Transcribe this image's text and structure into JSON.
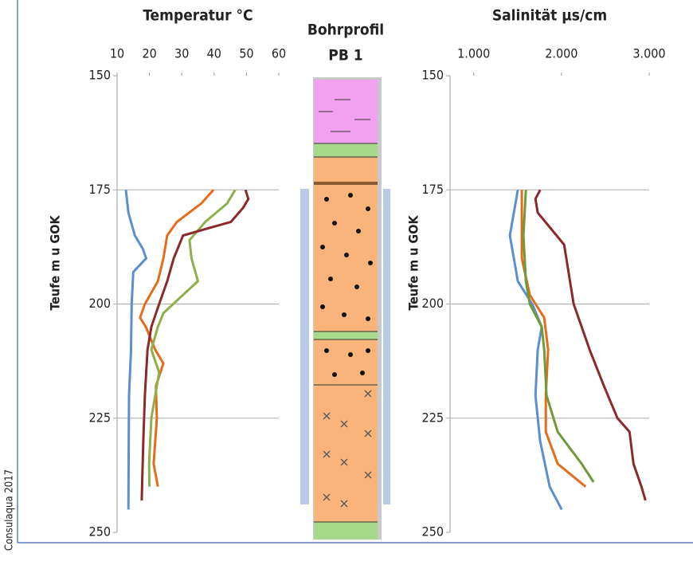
{
  "chart_data": [
    {
      "type": "line",
      "title": "Temperatur °C",
      "y_label": "Teufe m u GOK",
      "xlim": [
        10,
        60
      ],
      "xticks": [
        10,
        20,
        30,
        40,
        50,
        60
      ],
      "ylim": [
        150,
        250
      ],
      "yticks": [
        150,
        175,
        200,
        225,
        250
      ],
      "y_inverted": true,
      "grid": true,
      "series": [
        {
          "color": "#5b8fd0",
          "y": [
            175,
            180,
            185,
            188,
            190,
            193,
            200,
            210,
            220,
            230,
            245
          ],
          "x": [
            12.7,
            13.5,
            15.5,
            18,
            19,
            15,
            14.5,
            14.3,
            13.7,
            13.6,
            13.5
          ]
        },
        {
          "color": "#e46c1a",
          "y": [
            175,
            178,
            182,
            185,
            190,
            195,
            200,
            203,
            205,
            210,
            213,
            218,
            225,
            235,
            240
          ],
          "x": [
            39.8,
            36,
            28.5,
            25.5,
            24.3,
            22.6,
            18.6,
            17.1,
            18.9,
            21.8,
            24.3,
            22,
            22.3,
            21.3,
            22.6
          ]
        },
        {
          "color": "#8db04c",
          "y": [
            175,
            178,
            182,
            186,
            190,
            195,
            198,
            202,
            205,
            210,
            215,
            220,
            225,
            235,
            240
          ],
          "x": [
            46.5,
            44,
            37.3,
            32.4,
            33,
            35,
            30.4,
            24.3,
            22.6,
            20.6,
            23,
            21.8,
            20.6,
            19.9,
            20
          ]
        },
        {
          "color": "#8b2a2a",
          "y": [
            175,
            177,
            179,
            182,
            185,
            190,
            195,
            200,
            205,
            210,
            220,
            230,
            243
          ],
          "x": [
            49.7,
            50.6,
            48.9,
            45.2,
            30.4,
            27.5,
            25.5,
            23,
            20.6,
            19.4,
            18.6,
            18.1,
            17.6
          ]
        }
      ]
    },
    {
      "type": "line",
      "title": "Salinität µs/cm",
      "y_label": "Teufe m u GOK",
      "xlim": [
        730,
        3000
      ],
      "xticks": [
        {
          "value": 1000,
          "label": "1.000"
        },
        {
          "value": 2000,
          "label": "2.000"
        },
        {
          "value": 3000,
          "label": "3.000"
        }
      ],
      "ylim": [
        150,
        250
      ],
      "yticks": [
        150,
        175,
        200,
        225,
        250
      ],
      "y_inverted": true,
      "grid": true,
      "series": [
        {
          "color": "#5b8fd0",
          "y": [
            175,
            185,
            195,
            200,
            205,
            210,
            220,
            230,
            240,
            245
          ],
          "x": [
            1503,
            1412,
            1503,
            1666,
            1775,
            1730,
            1703,
            1757,
            1866,
            2003
          ]
        },
        {
          "color": "#e46c1a",
          "y": [
            175,
            190,
            198,
            203,
            210,
            220,
            228,
            235,
            240
          ],
          "x": [
            1548,
            1548,
            1639,
            1803,
            1848,
            1821,
            1821,
            1957,
            2275
          ]
        },
        {
          "color": "#6f9a3a",
          "y": [
            175,
            185,
            195,
            200,
            205,
            210,
            220,
            228,
            235,
            239
          ],
          "x": [
            1594,
            1566,
            1594,
            1639,
            1775,
            1803,
            1830,
            1957,
            2230,
            2366
          ]
        },
        {
          "color": "#8b2a2a",
          "y": [
            175,
            177,
            180,
            187,
            200,
            210,
            218,
            225,
            228,
            235,
            240,
            243
          ],
          "x": [
            1757,
            1703,
            1730,
            2030,
            2139,
            2321,
            2485,
            2639,
            2776,
            2821,
            2912,
            2957
          ]
        }
      ]
    }
  ],
  "profile": {
    "title": "Bohrprofil",
    "subtitle": "PB 1"
  },
  "credit": "Consulaqua 2017"
}
